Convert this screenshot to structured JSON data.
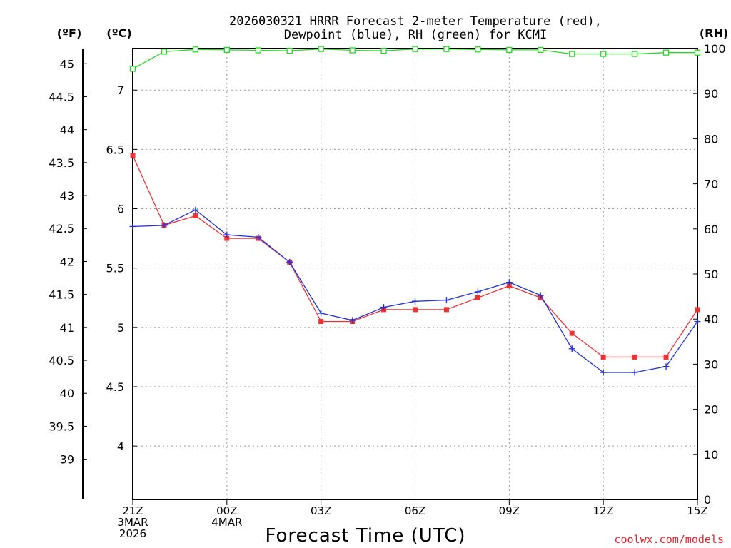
{
  "chart_data": {
    "type": "line",
    "title_line1": "2026030321 HRRR Forecast 2-meter Temperature (red),",
    "title_line2": "Dewpoint (blue), RH (green) for KCMI",
    "xlabel": "Forecast Time (UTC)",
    "credit": "coolwx.com/models",
    "unit_f": "(ºF)",
    "unit_c": "(ºC)",
    "unit_rh": "(RH)",
    "hours": [
      0,
      1,
      2,
      3,
      4,
      5,
      6,
      7,
      8,
      9,
      10,
      11,
      12,
      13,
      14,
      15,
      16,
      17,
      18
    ],
    "x_ticks": [
      {
        "hour": 0,
        "lines": [
          "21Z",
          "3MAR",
          "2026"
        ]
      },
      {
        "hour": 3,
        "lines": [
          "00Z",
          "4MAR"
        ]
      },
      {
        "hour": 6,
        "lines": [
          "03Z"
        ]
      },
      {
        "hour": 9,
        "lines": [
          "06Z"
        ]
      },
      {
        "hour": 12,
        "lines": [
          "09Z"
        ]
      },
      {
        "hour": 15,
        "lines": [
          "12Z"
        ]
      },
      {
        "hour": 18,
        "lines": [
          "15Z"
        ]
      }
    ],
    "celsius_axis": {
      "min": 3.55,
      "max": 7.35,
      "ticks": [
        "4",
        "4.5",
        "5",
        "5.5",
        "6",
        "6.5",
        "7"
      ]
    },
    "fahrenheit_ticks": [
      "39",
      "39.5",
      "40",
      "40.5",
      "41",
      "41.5",
      "42",
      "42.5",
      "43",
      "43.5",
      "44",
      "44.5",
      "45"
    ],
    "rh_axis": {
      "min": 0,
      "max": 100,
      "ticks": [
        "0",
        "10",
        "20",
        "30",
        "40",
        "50",
        "60",
        "70",
        "80",
        "90",
        "100"
      ]
    },
    "series": [
      {
        "name": "Temperature",
        "color": "#ee3333",
        "axis": "celsius",
        "marker": "filled-square",
        "values": [
          6.45,
          5.86,
          5.94,
          5.75,
          5.75,
          5.55,
          5.05,
          5.05,
          5.15,
          5.15,
          5.15,
          5.25,
          5.35,
          5.25,
          4.95,
          4.75,
          4.75,
          4.75,
          5.15
        ]
      },
      {
        "name": "Dewpoint",
        "color": "#2233dd",
        "axis": "celsius",
        "marker": "plus",
        "values": [
          5.85,
          5.86,
          5.99,
          5.78,
          5.76,
          5.55,
          5.12,
          5.06,
          5.17,
          5.22,
          5.23,
          5.3,
          5.38,
          5.27,
          4.82,
          4.62,
          4.62,
          4.67,
          5.05
        ]
      },
      {
        "name": "RH",
        "color": "#22dd22",
        "axis": "rh",
        "marker": "open-square",
        "values": [
          95.5,
          99.3,
          99.8,
          99.7,
          99.6,
          99.5,
          99.9,
          99.6,
          99.5,
          99.9,
          99.9,
          99.8,
          99.7,
          99.7,
          98.8,
          98.8,
          98.8,
          99.1,
          99.1
        ]
      }
    ]
  }
}
